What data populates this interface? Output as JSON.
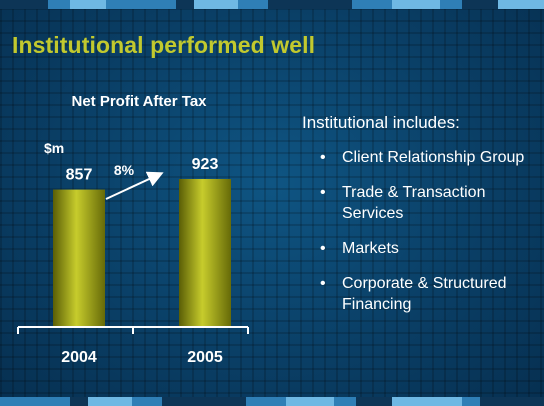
{
  "slide": {
    "title": "Institutional performed well",
    "colors": {
      "title": "#c2c92e",
      "bar": "#a8ad14",
      "background": "#0a3f66",
      "text": "#ffffff",
      "stripe_light": "#6fb8e3",
      "stripe_mid": "#2f7fb6",
      "stripe_dark": "#0d3556"
    }
  },
  "chart_data": {
    "type": "bar",
    "title": "Net Profit After Tax",
    "unit": "$m",
    "categories": [
      "2004",
      "2005"
    ],
    "values": [
      857,
      923
    ],
    "data_labels": [
      "857",
      "923"
    ],
    "annotation": {
      "text": "8%",
      "from": "2004",
      "to": "2005"
    },
    "xlabel": "",
    "ylabel": "$m",
    "grid": false,
    "legend": "none"
  },
  "bullets": {
    "heading": "Institutional includes:",
    "items": [
      "Client Relationship Group",
      "Trade & Transaction Services",
      "Markets",
      "Corporate & Structured Financing"
    ]
  }
}
